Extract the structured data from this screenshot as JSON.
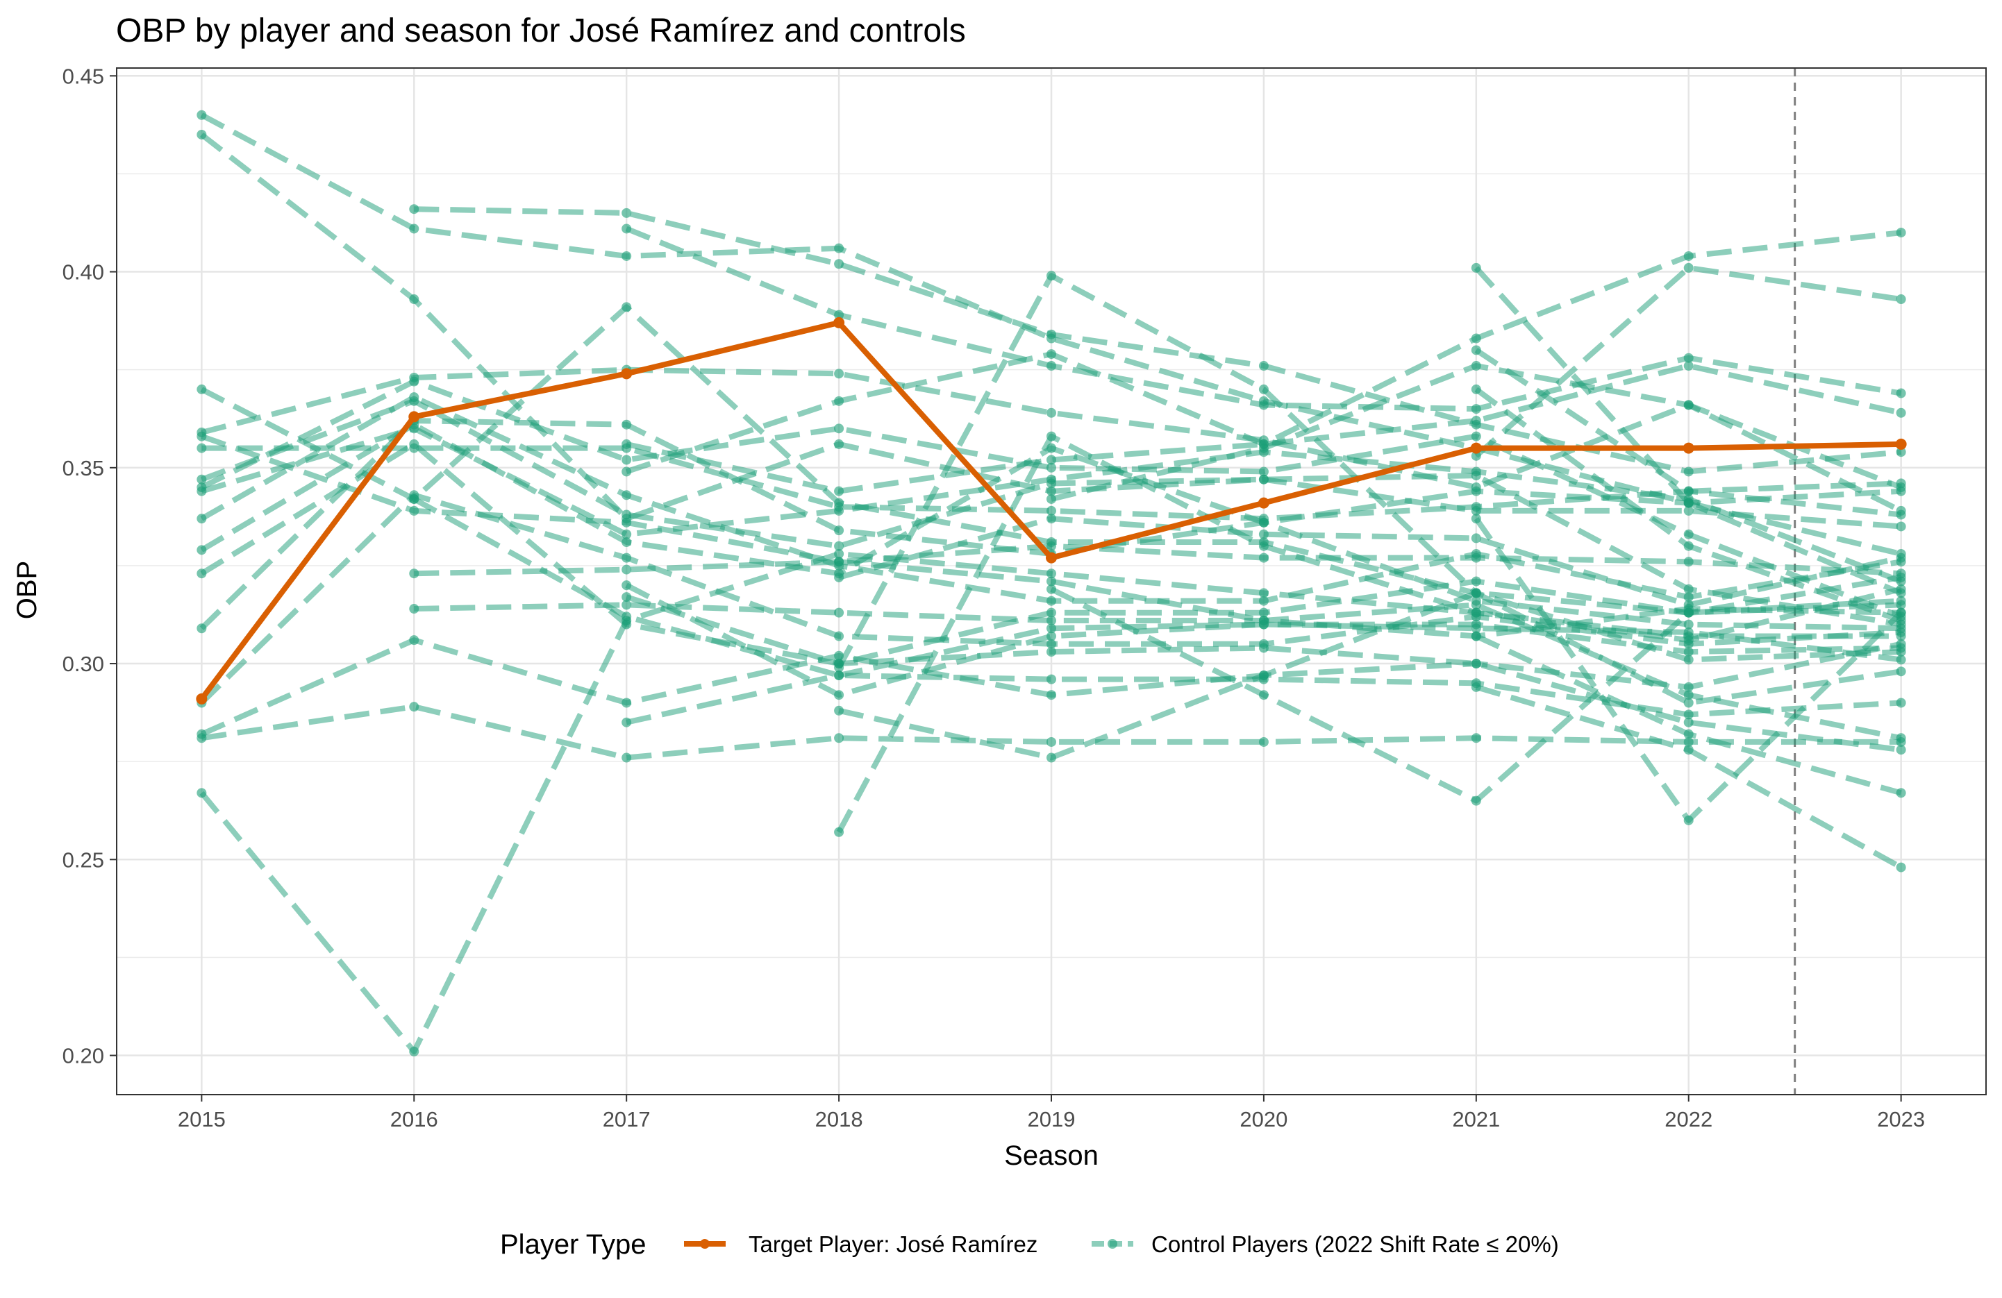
{
  "chart_data": {
    "type": "line",
    "title": "OBP by player and season for José Ramírez and controls",
    "xlabel": "Season",
    "ylabel": "OBP",
    "xlim": [
      2014.6,
      2023.4
    ],
    "ylim": [
      0.19,
      0.452
    ],
    "x_ticks": [
      "2015",
      "2016",
      "2017",
      "2018",
      "2019",
      "2020",
      "2021",
      "2022",
      "2023"
    ],
    "y_ticks": [
      "0.20",
      "0.25",
      "0.30",
      "0.35",
      "0.40",
      "0.45"
    ],
    "grid": true,
    "reference_line": {
      "x": 2022.5,
      "style": "dashed"
    },
    "legend": {
      "title": "Player Type",
      "position": "bottom",
      "entries": [
        "Target Player: José Ramírez",
        "Control Players (2022 Shift Rate ≤ 20%)"
      ]
    },
    "colors": {
      "target": "#d95f02",
      "control": "#1b9e77"
    },
    "target": {
      "name": "Target Player: José Ramírez",
      "points": [
        [
          2015,
          0.291
        ],
        [
          2016,
          0.363
        ],
        [
          2017,
          0.374
        ],
        [
          2018,
          0.387
        ],
        [
          2019,
          0.327
        ],
        [
          2020,
          0.341
        ],
        [
          2021,
          0.355
        ],
        [
          2022,
          0.355
        ],
        [
          2023,
          0.356
        ]
      ]
    },
    "controls": [
      [
        [
          2015,
          0.44
        ],
        [
          2016,
          0.411
        ],
        [
          2017,
          0.404
        ],
        [
          2018,
          0.406
        ],
        [
          2019,
          0.383
        ],
        [
          2020,
          0.367
        ],
        [
          2021,
          0.355
        ],
        [
          2022,
          0.341
        ],
        [
          2023,
          0.318
        ]
      ],
      [
        [
          2015,
          0.435
        ],
        [
          2016,
          0.393
        ],
        [
          2017,
          0.337
        ],
        [
          2018,
          0.356
        ],
        [
          2019,
          0.344
        ],
        [
          2020,
          0.347
        ],
        [
          2021,
          0.339
        ],
        [
          2022,
          0.339
        ],
        [
          2023,
          0.335
        ]
      ],
      [
        [
          2015,
          0.37
        ],
        [
          2016,
          0.342
        ],
        [
          2017,
          0.391
        ],
        [
          2018,
          0.341
        ],
        [
          2019,
          0.331
        ],
        [
          2020,
          0.331
        ],
        [
          2021,
          0.318
        ],
        [
          2022,
          0.301
        ],
        [
          2023,
          0.303
        ]
      ],
      [
        [
          2015,
          0.359
        ],
        [
          2016,
          0.373
        ],
        [
          2017,
          0.375
        ],
        [
          2018,
          0.374
        ],
        [
          2019,
          0.364
        ],
        [
          2020,
          0.357
        ],
        [
          2021,
          0.345
        ],
        [
          2022,
          0.366
        ],
        [
          2023,
          0.345
        ]
      ],
      [
        [
          2015,
          0.358
        ],
        [
          2016,
          0.339
        ],
        [
          2017,
          0.336
        ],
        [
          2018,
          0.326
        ],
        [
          2019,
          0.321
        ],
        [
          2020,
          0.311
        ],
        [
          2021,
          0.315
        ],
        [
          2022,
          0.292
        ],
        [
          2023,
          0.281
        ]
      ],
      [
        [
          2015,
          0.355
        ],
        [
          2016,
          0.355
        ],
        [
          2017,
          0.355
        ],
        [
          2018,
          0.34
        ],
        [
          2019,
          0.339
        ],
        [
          2020,
          0.337
        ],
        [
          2021,
          0.34
        ],
        [
          2022,
          0.344
        ],
        [
          2023,
          0.338
        ]
      ],
      [
        [
          2015,
          0.347
        ],
        [
          2016,
          0.367
        ],
        [
          2017,
          0.338
        ],
        [
          2018,
          0.33
        ],
        [
          2019,
          0.346
        ],
        [
          2020,
          0.347
        ],
        [
          2021,
          0.348
        ],
        [
          2022,
          0.319
        ],
        [
          2023,
          0.31
        ]
      ],
      [
        [
          2015,
          0.345
        ],
        [
          2016,
          0.372
        ],
        [
          2017,
          0.352
        ],
        [
          2018,
          0.36
        ],
        [
          2019,
          0.35
        ],
        [
          2020,
          0.349
        ],
        [
          2021,
          0.358
        ],
        [
          2022,
          0.333
        ],
        [
          2023,
          0.312
        ]
      ],
      [
        [
          2015,
          0.344
        ],
        [
          2016,
          0.36
        ],
        [
          2017,
          0.333
        ],
        [
          2018,
          0.339
        ],
        [
          2019,
          0.347
        ],
        [
          2020,
          0.354
        ],
        [
          2021,
          0.349
        ],
        [
          2022,
          0.342
        ],
        [
          2023,
          0.321
        ]
      ],
      [
        [
          2015,
          0.337
        ],
        [
          2016,
          0.368
        ],
        [
          2017,
          0.343
        ],
        [
          2018,
          0.325
        ],
        [
          2019,
          0.316
        ],
        [
          2020,
          0.316
        ],
        [
          2021,
          0.328
        ],
        [
          2022,
          0.317
        ],
        [
          2023,
          0.326
        ]
      ],
      [
        [
          2015,
          0.329
        ],
        [
          2016,
          0.361
        ],
        [
          2017,
          0.331
        ],
        [
          2018,
          0.323
        ],
        [
          2019,
          0.355
        ],
        [
          2020,
          0.336
        ],
        [
          2021,
          0.316
        ],
        [
          2022,
          0.31
        ],
        [
          2023,
          0.309
        ]
      ],
      [
        [
          2015,
          0.323
        ],
        [
          2016,
          0.356
        ],
        [
          2017,
          0.31
        ],
        [
          2018,
          0.3
        ],
        [
          2019,
          0.313
        ],
        [
          2020,
          0.313
        ],
        [
          2021,
          0.321
        ],
        [
          2022,
          0.313
        ],
        [
          2023,
          0.322
        ]
      ],
      [
        [
          2015,
          0.309
        ],
        [
          2016,
          0.362
        ],
        [
          2017,
          0.361
        ],
        [
          2018,
          0.334
        ],
        [
          2019,
          0.328
        ],
        [
          2020,
          0.336
        ],
        [
          2021,
          0.344
        ],
        [
          2022,
          0.341
        ],
        [
          2023,
          0.344
        ]
      ],
      [
        [
          2015,
          0.29
        ],
        [
          2016,
          0.343
        ],
        [
          2017,
          0.327
        ],
        [
          2018,
          0.307
        ],
        [
          2019,
          0.305
        ],
        [
          2020,
          0.305
        ],
        [
          2021,
          0.312
        ],
        [
          2022,
          0.305
        ],
        [
          2023,
          0.308
        ]
      ],
      [
        [
          2015,
          0.282
        ],
        [
          2016,
          0.306
        ],
        [
          2017,
          0.29
        ],
        [
          2018,
          0.302
        ],
        [
          2019,
          0.292
        ],
        [
          2020,
          0.297
        ],
        [
          2021,
          0.3
        ],
        [
          2022,
          0.294
        ],
        [
          2023,
          0.305
        ]
      ],
      [
        [
          2015,
          0.281
        ],
        [
          2016,
          0.289
        ],
        [
          2017,
          0.276
        ],
        [
          2018,
          0.281
        ],
        [
          2019,
          0.28
        ],
        [
          2020,
          0.28
        ],
        [
          2021,
          0.281
        ],
        [
          2022,
          0.28
        ],
        [
          2023,
          0.28
        ]
      ],
      [
        [
          2015,
          0.267
        ],
        [
          2016,
          0.201
        ],
        [
          2017,
          0.311
        ],
        [
          2018,
          0.328
        ],
        [
          2019,
          0.323
        ],
        [
          2020,
          0.318
        ],
        [
          2021,
          0.313
        ],
        [
          2022,
          0.306
        ],
        [
          2023,
          0.319
        ]
      ],
      [
        [
          2016,
          0.416
        ],
        [
          2017,
          0.415
        ],
        [
          2018,
          0.402
        ],
        [
          2019,
          0.384
        ],
        [
          2020,
          0.376
        ],
        [
          2021,
          0.361
        ],
        [
          2022,
          0.349
        ],
        [
          2023,
          0.354
        ]
      ],
      [
        [
          2016,
          0.323
        ],
        [
          2017,
          0.324
        ],
        [
          2018,
          0.326
        ],
        [
          2019,
          0.33
        ],
        [
          2020,
          0.327
        ],
        [
          2021,
          0.327
        ],
        [
          2022,
          0.326
        ],
        [
          2023,
          0.323
        ]
      ],
      [
        [
          2016,
          0.314
        ],
        [
          2017,
          0.315
        ],
        [
          2018,
          0.313
        ],
        [
          2019,
          0.311
        ],
        [
          2020,
          0.311
        ],
        [
          2021,
          0.307
        ],
        [
          2022,
          0.314
        ],
        [
          2023,
          0.313
        ]
      ],
      [
        [
          2016,
          0.342
        ],
        [
          2017,
          0.312
        ],
        [
          2018,
          0.297
        ],
        [
          2019,
          0.296
        ],
        [
          2020,
          0.296
        ],
        [
          2021,
          0.295
        ],
        [
          2022,
          0.287
        ],
        [
          2023,
          0.29
        ]
      ],
      [
        [
          2017,
          0.411
        ],
        [
          2018,
          0.389
        ],
        [
          2019,
          0.376
        ],
        [
          2020,
          0.366
        ],
        [
          2021,
          0.365
        ],
        [
          2022,
          0.378
        ],
        [
          2023,
          0.369
        ]
      ],
      [
        [
          2017,
          0.349
        ],
        [
          2018,
          0.367
        ],
        [
          2019,
          0.379
        ],
        [
          2020,
          0.356
        ],
        [
          2021,
          0.383
        ],
        [
          2022,
          0.404
        ],
        [
          2023,
          0.41
        ]
      ],
      [
        [
          2017,
          0.356
        ],
        [
          2018,
          0.344
        ],
        [
          2019,
          0.352
        ],
        [
          2020,
          0.356
        ],
        [
          2021,
          0.362
        ],
        [
          2022,
          0.376
        ],
        [
          2023,
          0.364
        ]
      ],
      [
        [
          2017,
          0.32
        ],
        [
          2018,
          0.292
        ],
        [
          2019,
          0.307
        ],
        [
          2020,
          0.31
        ],
        [
          2021,
          0.31
        ],
        [
          2022,
          0.303
        ],
        [
          2023,
          0.304
        ]
      ],
      [
        [
          2017,
          0.317
        ],
        [
          2018,
          0.3
        ],
        [
          2019,
          0.303
        ],
        [
          2020,
          0.304
        ],
        [
          2021,
          0.3
        ],
        [
          2022,
          0.285
        ],
        [
          2023,
          0.278
        ]
      ],
      [
        [
          2017,
          0.285
        ],
        [
          2018,
          0.297
        ],
        [
          2019,
          0.309
        ],
        [
          2020,
          0.31
        ],
        [
          2021,
          0.309
        ],
        [
          2022,
          0.308
        ],
        [
          2023,
          0.301
        ]
      ],
      [
        [
          2018,
          0.322
        ],
        [
          2019,
          0.337
        ],
        [
          2020,
          0.333
        ],
        [
          2021,
          0.332
        ],
        [
          2022,
          0.315
        ],
        [
          2023,
          0.327
        ]
      ],
      [
        [
          2018,
          0.257
        ],
        [
          2019,
          0.358
        ],
        [
          2020,
          0.33
        ],
        [
          2021,
          0.313
        ],
        [
          2022,
          0.307
        ],
        [
          2023,
          0.307
        ]
      ],
      [
        [
          2018,
          0.288
        ],
        [
          2019,
          0.276
        ],
        [
          2020,
          0.297
        ],
        [
          2021,
          0.318
        ],
        [
          2022,
          0.313
        ],
        [
          2023,
          0.315
        ]
      ],
      [
        [
          2018,
          0.299
        ],
        [
          2019,
          0.399
        ],
        [
          2020,
          0.37
        ],
        [
          2021,
          0.318
        ],
        [
          2022,
          0.29
        ],
        [
          2023,
          0.298
        ]
      ],
      [
        [
          2019,
          0.342
        ],
        [
          2020,
          0.355
        ],
        [
          2021,
          0.376
        ],
        [
          2022,
          0.366
        ],
        [
          2023,
          0.339
        ]
      ],
      [
        [
          2019,
          0.319
        ],
        [
          2020,
          0.292
        ],
        [
          2021,
          0.265
        ],
        [
          2022,
          0.313
        ],
        [
          2023,
          0.316
        ]
      ],
      [
        [
          2021,
          0.401
        ],
        [
          2022,
          0.341
        ],
        [
          2023,
          0.328
        ]
      ],
      [
        [
          2021,
          0.37
        ],
        [
          2022,
          0.33
        ],
        [
          2023,
          0.311
        ]
      ],
      [
        [
          2021,
          0.353
        ],
        [
          2022,
          0.401
        ],
        [
          2023,
          0.393
        ]
      ],
      [
        [
          2021,
          0.337
        ],
        [
          2022,
          0.26
        ],
        [
          2023,
          0.313
        ]
      ],
      [
        [
          2021,
          0.307
        ],
        [
          2022,
          0.282
        ],
        [
          2023,
          0.267
        ]
      ],
      [
        [
          2021,
          0.294
        ],
        [
          2022,
          0.278
        ],
        [
          2023,
          0.248
        ]
      ],
      [
        [
          2021,
          0.38
        ],
        [
          2022,
          0.344
        ],
        [
          2023,
          0.346
        ]
      ]
    ]
  }
}
